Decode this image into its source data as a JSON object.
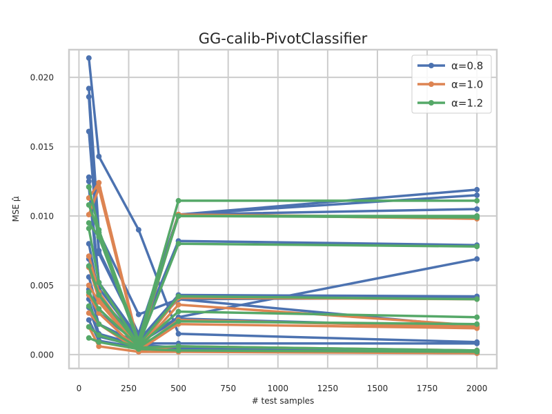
{
  "chart_data": {
    "type": "line",
    "title": "GG-calib-PivotClassifier",
    "xlabel": "# test samples",
    "ylabel": "MSE μ̂",
    "xlim": [
      -50,
      2100
    ],
    "ylim": [
      -0.001,
      0.022
    ],
    "xticks": [
      0,
      250,
      500,
      750,
      1000,
      1250,
      1500,
      1750,
      2000
    ],
    "xtick_labels": [
      "0",
      "250",
      "500",
      "750",
      "1000",
      "1250",
      "1500",
      "1750",
      "2000"
    ],
    "yticks": [
      0.0,
      0.005,
      0.01,
      0.015,
      0.02
    ],
    "ytick_labels": [
      "0.000",
      "0.005",
      "0.010",
      "0.015",
      "0.020"
    ],
    "grid": true,
    "legend_position": "top-right",
    "x": [
      50,
      100,
      300,
      500,
      2000
    ],
    "series": [
      {
        "name": "α=0.8",
        "color": "#4c72b0",
        "lines": [
          [
            0.0214,
            0.0143,
            0.009,
            0.0015,
            0.0009
          ],
          [
            0.0192,
            0.0088,
            0.0029,
            0.004,
            0.002
          ],
          [
            0.0186,
            0.0075,
            0.0015,
            0.0101,
            0.0119
          ],
          [
            0.0161,
            0.0073,
            0.0015,
            0.0101,
            0.0115
          ],
          [
            0.0128,
            0.0052,
            0.0012,
            0.0101,
            0.0105
          ],
          [
            0.0125,
            0.0052,
            0.0012,
            0.0082,
            0.0079
          ],
          [
            0.0121,
            0.0048,
            0.001,
            0.0043,
            0.0042
          ],
          [
            0.008,
            0.0042,
            0.001,
            0.004,
            0.0041
          ],
          [
            0.0069,
            0.004,
            0.0009,
            0.0027,
            0.0069
          ],
          [
            0.0056,
            0.003,
            0.0008,
            0.0026,
            0.002
          ],
          [
            0.0047,
            0.0022,
            0.0008,
            0.0008,
            0.0008
          ],
          [
            0.004,
            0.0015,
            0.0007,
            0.0005,
            0.0003
          ],
          [
            0.0034,
            0.0013,
            0.0006,
            0.0004,
            0.0002
          ],
          [
            0.0025,
            0.001,
            0.0005,
            0.0003,
            0.0001
          ]
        ]
      },
      {
        "name": "α=1.0",
        "color": "#dd8452",
        "lines": [
          [
            0.0113,
            0.0124,
            0.0007,
            0.0101,
            0.0099
          ],
          [
            0.0101,
            0.012,
            0.0006,
            0.0101,
            0.0098
          ],
          [
            0.0071,
            0.0045,
            0.0005,
            0.0041,
            0.004
          ],
          [
            0.0063,
            0.004,
            0.0004,
            0.0036,
            0.0021
          ],
          [
            0.005,
            0.0038,
            0.0004,
            0.0025,
            0.002
          ],
          [
            0.0043,
            0.003,
            0.0003,
            0.0022,
            0.0019
          ],
          [
            0.003,
            0.0022,
            0.0003,
            0.0006,
            0.0003
          ],
          [
            0.002,
            0.0006,
            0.0002,
            0.0002,
            0.0001
          ]
        ]
      },
      {
        "name": "α=1.2",
        "color": "#55a868",
        "lines": [
          [
            0.0121,
            0.009,
            0.001,
            0.0111,
            0.0111
          ],
          [
            0.0108,
            0.0088,
            0.0009,
            0.01,
            0.01
          ],
          [
            0.0095,
            0.0085,
            0.0008,
            0.01,
            0.0099
          ],
          [
            0.0091,
            0.0052,
            0.0007,
            0.008,
            0.0078
          ],
          [
            0.0064,
            0.0043,
            0.0007,
            0.0042,
            0.004
          ],
          [
            0.0045,
            0.0033,
            0.0006,
            0.0031,
            0.0027
          ],
          [
            0.0035,
            0.0022,
            0.0005,
            0.0024,
            0.0022
          ],
          [
            0.002,
            0.0014,
            0.0005,
            0.0006,
            0.0003
          ],
          [
            0.0012,
            0.0009,
            0.0004,
            0.0003,
            0.0002
          ]
        ]
      }
    ]
  }
}
